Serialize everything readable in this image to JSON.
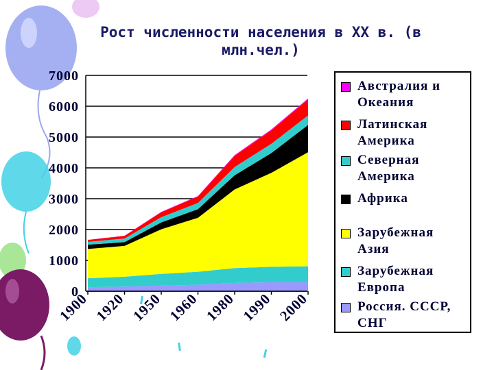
{
  "title": "Рост численности населения в XX в. (в\nмлн.чел.)",
  "colors": {
    "balloon_dark": "#7b1b66",
    "balloon_light": "#9aa7f0",
    "balloon_cyan": "#43d1e6",
    "balloon_green": "#95e07e"
  },
  "chart_data": {
    "type": "area",
    "stacked": true,
    "x": [
      "1900",
      "1920",
      "1950",
      "1960",
      "1980",
      "1990",
      "2000"
    ],
    "ylim": [
      0,
      7000
    ],
    "yticks": [
      "0",
      "1000",
      "2000",
      "3000",
      "4000",
      "5000",
      "6000",
      "7000"
    ],
    "legend_position": "right",
    "series": [
      {
        "name": "Россия. СССР,\nСНГ",
        "color": "#9999ff",
        "values": [
          130,
          150,
          180,
          210,
          270,
          290,
          290
        ]
      },
      {
        "name": "Зарубежная\nЕвропа",
        "color": "#33cccc",
        "values": [
          290,
          320,
          380,
          420,
          480,
          500,
          520
        ]
      },
      {
        "name": "Зарубежная\nАзия",
        "color": "#ffff00",
        "values": [
          950,
          1000,
          1450,
          1750,
          2550,
          3050,
          3700
        ]
      },
      {
        "name": "Африка",
        "color": "#000000",
        "values": [
          140,
          120,
          220,
          280,
          460,
          640,
          880
        ]
      },
      {
        "name": "Северная\nАмерика",
        "color": "#33cccc",
        "values": [
          90,
          120,
          170,
          200,
          270,
          300,
          310
        ]
      },
      {
        "name": "Латинская\nАмерика",
        "color": "#ff0000",
        "values": [
          60,
          80,
          160,
          210,
          360,
          440,
          520
        ]
      },
      {
        "name": "Австралия и\nОкеания",
        "color": "#ff00ff",
        "values": [
          6,
          9,
          13,
          16,
          23,
          27,
          30
        ]
      }
    ],
    "legend_order": [
      6,
      5,
      4,
      3,
      2,
      1,
      0
    ]
  }
}
